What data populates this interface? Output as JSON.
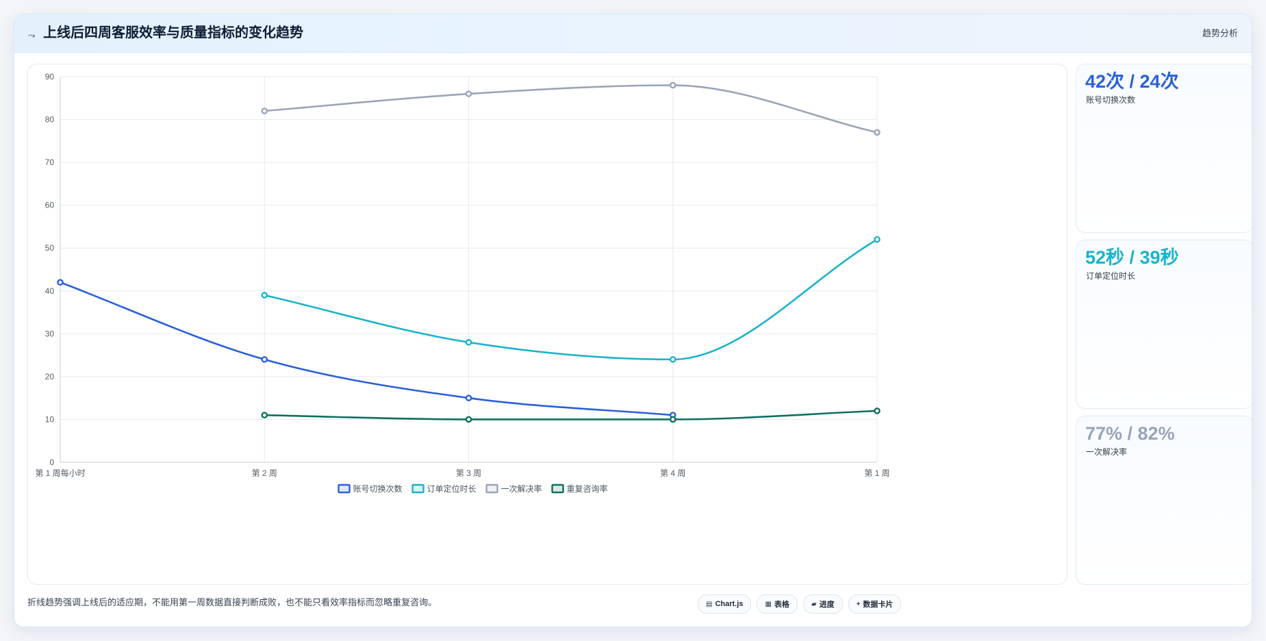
{
  "header": {
    "icon": "trend-line-icon",
    "title": "上线后四周客服效率与质量指标的变化趋势",
    "badge": "趋势分析"
  },
  "chart_data": {
    "type": "line",
    "categories": [
      "第 1 周每小时",
      "第 2 周",
      "第 3 周",
      "第 4 周",
      "第 1 周"
    ],
    "ylim": [
      0,
      90
    ],
    "yticks": [
      0,
      10,
      20,
      30,
      40,
      50,
      60,
      70,
      80,
      90
    ],
    "grid": true,
    "legend_position": "bottom",
    "smooth": true,
    "series": [
      {
        "name": "账号切换次数",
        "color": "#2b5fd9",
        "values": [
          42,
          24,
          15,
          11,
          null
        ]
      },
      {
        "name": "订单定位时长",
        "color": "#1ab3c9",
        "values": [
          null,
          39,
          28,
          24,
          52
        ]
      },
      {
        "name": "一次解决率",
        "color": "#98a4b7",
        "values": [
          null,
          82,
          86,
          88,
          77
        ]
      },
      {
        "name": "重复咨询率",
        "color": "#0e6e5f",
        "values": [
          null,
          11,
          10,
          10,
          12
        ]
      }
    ]
  },
  "stats": [
    {
      "value": "42次 / 24次",
      "label": "账号切换次数",
      "color": "#2b5fd9"
    },
    {
      "value": "52秒 / 39秒",
      "label": "订单定位时长",
      "color": "#1ab3c9"
    },
    {
      "value": "77% / 82%",
      "label": "一次解决率",
      "color": "#98a4b7"
    }
  ],
  "footer": {
    "note": "折线趋势强调上线后的适应期，不能用第一周数据直接判断成败，也不能只看效率指标而忽略重复咨询。",
    "chips": [
      {
        "icon": "▤",
        "label": "Chart.js"
      },
      {
        "icon": "▦",
        "label": "表格"
      },
      {
        "icon": "▰",
        "label": "进度"
      },
      {
        "icon": "+",
        "label": "数据卡片"
      }
    ]
  }
}
